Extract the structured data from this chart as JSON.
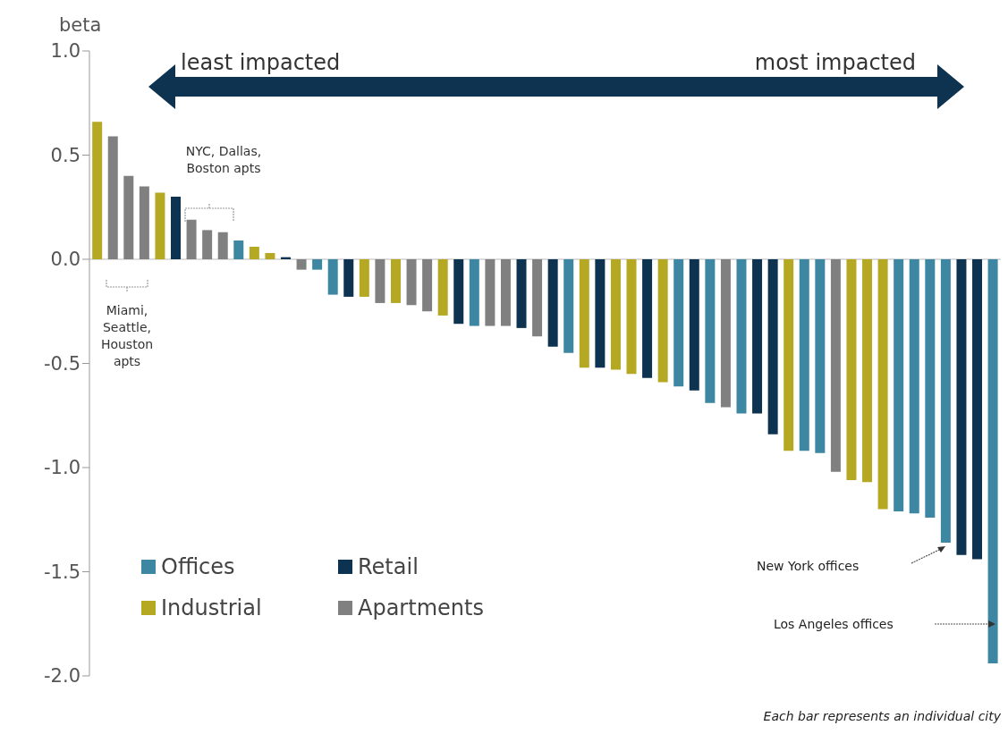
{
  "chart_data": {
    "type": "bar",
    "ylabel": "beta",
    "stacked": true,
    "tick_labels": "y",
    "legend": "bottom left",
    "categories": [
      null,
      null,
      null,
      null,
      null,
      null,
      null,
      null,
      null,
      null,
      null,
      null,
      null,
      null,
      null,
      null,
      null,
      null,
      null,
      null,
      null,
      null,
      null,
      null,
      null,
      null,
      null,
      null,
      null,
      null,
      null,
      null,
      null,
      null,
      null,
      null,
      null,
      null,
      null,
      null,
      null,
      null,
      null,
      null,
      null,
      null,
      null,
      null,
      null,
      null,
      null,
      null,
      null,
      null,
      null,
      null,
      null,
      null
    ],
    "series": [
      {
        "name": "Offices",
        "color": "#3e87a3",
        "values": [
          null,
          null,
          null,
          null,
          null,
          null,
          null,
          null,
          null,
          0.09,
          null,
          null,
          null,
          null,
          -0.05,
          -0.17,
          null,
          null,
          null,
          null,
          null,
          null,
          null,
          null,
          -0.32,
          null,
          null,
          null,
          null,
          null,
          -0.45,
          null,
          null,
          null,
          null,
          null,
          null,
          -0.61,
          null,
          -0.69,
          null,
          -0.74,
          null,
          null,
          null,
          -0.92,
          -0.93,
          null,
          null,
          null,
          null,
          -1.21,
          -1.22,
          -1.24,
          -1.36,
          null,
          null,
          -1.94
        ]
      },
      {
        "name": "Retail",
        "color": "#0e3350",
        "values": [
          null,
          null,
          null,
          null,
          null,
          0.3,
          null,
          null,
          null,
          null,
          null,
          null,
          0.01,
          null,
          null,
          null,
          -0.18,
          null,
          null,
          null,
          null,
          null,
          null,
          -0.31,
          null,
          null,
          null,
          -0.33,
          null,
          -0.42,
          null,
          null,
          -0.52,
          null,
          null,
          -0.57,
          null,
          null,
          -0.63,
          null,
          null,
          null,
          -0.74,
          -0.84,
          null,
          null,
          null,
          null,
          null,
          null,
          null,
          null,
          null,
          null,
          null,
          -1.42,
          -1.44,
          null
        ]
      },
      {
        "name": "Industrial",
        "color": "#b5a823",
        "values": [
          0.66,
          null,
          null,
          null,
          0.32,
          null,
          null,
          null,
          null,
          null,
          0.06,
          0.03,
          null,
          null,
          null,
          null,
          null,
          -0.18,
          null,
          -0.21,
          null,
          null,
          -0.27,
          null,
          null,
          null,
          null,
          null,
          null,
          null,
          null,
          -0.52,
          null,
          -0.53,
          -0.55,
          null,
          -0.59,
          null,
          null,
          null,
          null,
          null,
          null,
          null,
          -0.92,
          null,
          null,
          null,
          -1.06,
          -1.07,
          -1.2,
          null,
          null,
          null,
          null,
          null,
          null,
          null
        ]
      },
      {
        "name": "Apartments",
        "color": "#808080",
        "values": [
          null,
          0.59,
          0.4,
          0.35,
          null,
          null,
          0.19,
          0.14,
          0.13,
          null,
          null,
          null,
          null,
          -0.05,
          null,
          null,
          null,
          null,
          -0.21,
          null,
          -0.22,
          -0.25,
          null,
          null,
          null,
          -0.32,
          -0.32,
          null,
          -0.37,
          null,
          null,
          null,
          null,
          null,
          null,
          null,
          null,
          null,
          null,
          null,
          -0.71,
          null,
          null,
          null,
          null,
          null,
          null,
          -1.02,
          null,
          null,
          null,
          null,
          null,
          null,
          null,
          null,
          null,
          null
        ]
      }
    ],
    "ylim": [
      -2,
      1
    ],
    "yticks": [
      {
        "value": -2,
        "label": "-2.0"
      },
      {
        "value": -1.5,
        "label": "-1.5"
      },
      {
        "value": -1,
        "label": "-1.0"
      },
      {
        "value": -0.5,
        "label": "-0.5"
      },
      {
        "value": 0,
        "label": "0.0"
      },
      {
        "value": 0.5,
        "label": "0.5"
      },
      {
        "value": 1,
        "label": "1.0"
      }
    ],
    "annotations": [
      "least impacted",
      "most impacted",
      "NYC, Dallas, Boston apts",
      "Miami, Seattle, Houston apts",
      "New York offices",
      "Los Angeles offices",
      "Each bar represents an individual city"
    ]
  }
}
